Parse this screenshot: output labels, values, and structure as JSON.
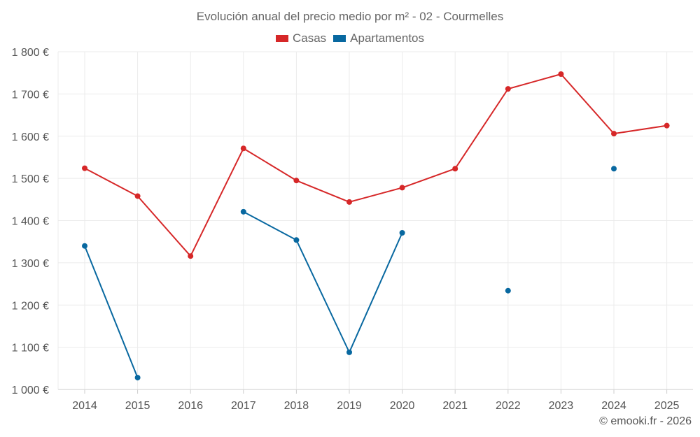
{
  "chart_data": {
    "type": "line",
    "title": "Evolución anual del precio medio por m² - 02 - Courmelles",
    "categories": [
      "2014",
      "2015",
      "2016",
      "2017",
      "2018",
      "2019",
      "2020",
      "2021",
      "2022",
      "2023",
      "2024",
      "2025"
    ],
    "series": [
      {
        "name": "Casas",
        "color": "#d62728",
        "values": [
          1524,
          1458,
          1316,
          1571,
          1495,
          1444,
          1478,
          1523,
          1712,
          1747,
          1606,
          1625
        ]
      },
      {
        "name": "Apartamentos",
        "color": "#0868a0",
        "values": [
          1340,
          1028,
          null,
          1421,
          1354,
          1088,
          1371,
          null,
          1234,
          null,
          1523,
          null
        ]
      }
    ],
    "ylim": [
      1000,
      1800
    ],
    "yticks": [
      1000,
      1100,
      1200,
      1300,
      1400,
      1500,
      1600,
      1700,
      1800
    ],
    "ytick_labels": [
      "1 000 €",
      "1 100 €",
      "1 200 €",
      "1 300 €",
      "1 400 €",
      "1 500 €",
      "1 600 €",
      "1 700 €",
      "1 800 €"
    ],
    "grid": true,
    "legend_position": "top-center"
  },
  "footer": {
    "credit": "© emooki.fr - 2026"
  }
}
